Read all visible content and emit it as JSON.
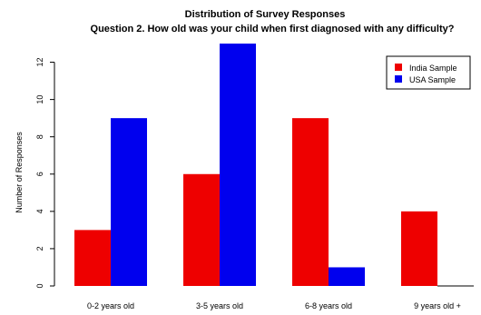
{
  "colors": {
    "india": "#ee0000",
    "usa": "#0000ee",
    "axis": "#000000"
  },
  "chart_data": {
    "type": "bar",
    "title": "Distribution of Survey Responses",
    "subtitle": "Question 2. How old was your child when first diagnosed with any difficulty?",
    "xlabel": "",
    "ylabel": "Number of Responses",
    "categories": [
      "0-2 years old",
      "3-5 years old",
      "6-8 years old",
      "9 years old +"
    ],
    "series": [
      {
        "name": "India Sample",
        "values": [
          3,
          6,
          9,
          4
        ]
      },
      {
        "name": "USA Sample",
        "values": [
          9,
          13,
          1,
          0
        ]
      }
    ],
    "ylim": [
      0,
      13
    ],
    "yticks": [
      0,
      2,
      4,
      6,
      8,
      10,
      12
    ],
    "grid": false,
    "legend": "top-right"
  }
}
